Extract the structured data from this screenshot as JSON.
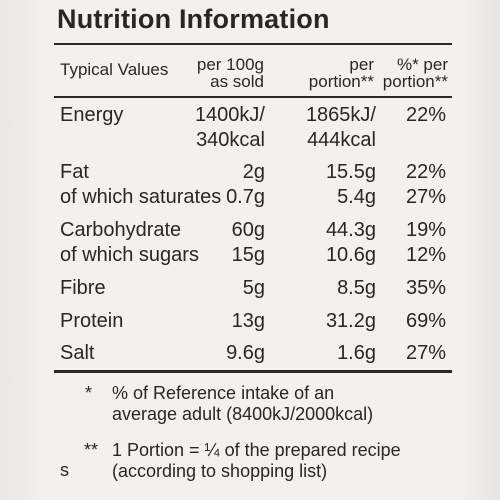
{
  "title": "Nutrition Information",
  "columns": {
    "typical": "Typical Values",
    "per100_line1": "per 100g",
    "per100_line2": "as sold",
    "portion_line1": "per",
    "portion_line2": "portion**",
    "ri_line1": "%* per",
    "ri_line2": "portion**"
  },
  "rows": [
    {
      "name": "Energy",
      "per100": "1400kJ/",
      "portion": "1865kJ/",
      "ri": "22%"
    },
    {
      "name": "",
      "per100": "340kcal",
      "portion": "444kcal",
      "ri": ""
    },
    {
      "name": "Fat",
      "per100": "2g",
      "portion": "15.5g",
      "ri": "22%"
    },
    {
      "name": "of which saturates",
      "per100": "0.7g",
      "portion": "5.4g",
      "ri": "27%"
    },
    {
      "name": "Carbohydrate",
      "per100": "60g",
      "portion": "44.3g",
      "ri": "19%"
    },
    {
      "name": "of which sugars",
      "per100": "15g",
      "portion": "10.6g",
      "ri": "12%"
    },
    {
      "name": "Fibre",
      "per100": "5g",
      "portion": "8.5g",
      "ri": "35%"
    },
    {
      "name": "Protein",
      "per100": "13g",
      "portion": "31.2g",
      "ri": "69%"
    },
    {
      "name": "Salt",
      "per100": "9.6g",
      "portion": "1.6g",
      "ri": "27%"
    }
  ],
  "footnotes": {
    "note1_mark": "*",
    "note1_line1": "% of Reference intake of an",
    "note1_line2": "average adult (8400kJ/2000kcal)",
    "note2_mark": "**",
    "note2_line1": "1 Portion = ¼ of the prepared recipe",
    "note2_line2": "(according to shopping list)"
  },
  "side_letter": "s"
}
